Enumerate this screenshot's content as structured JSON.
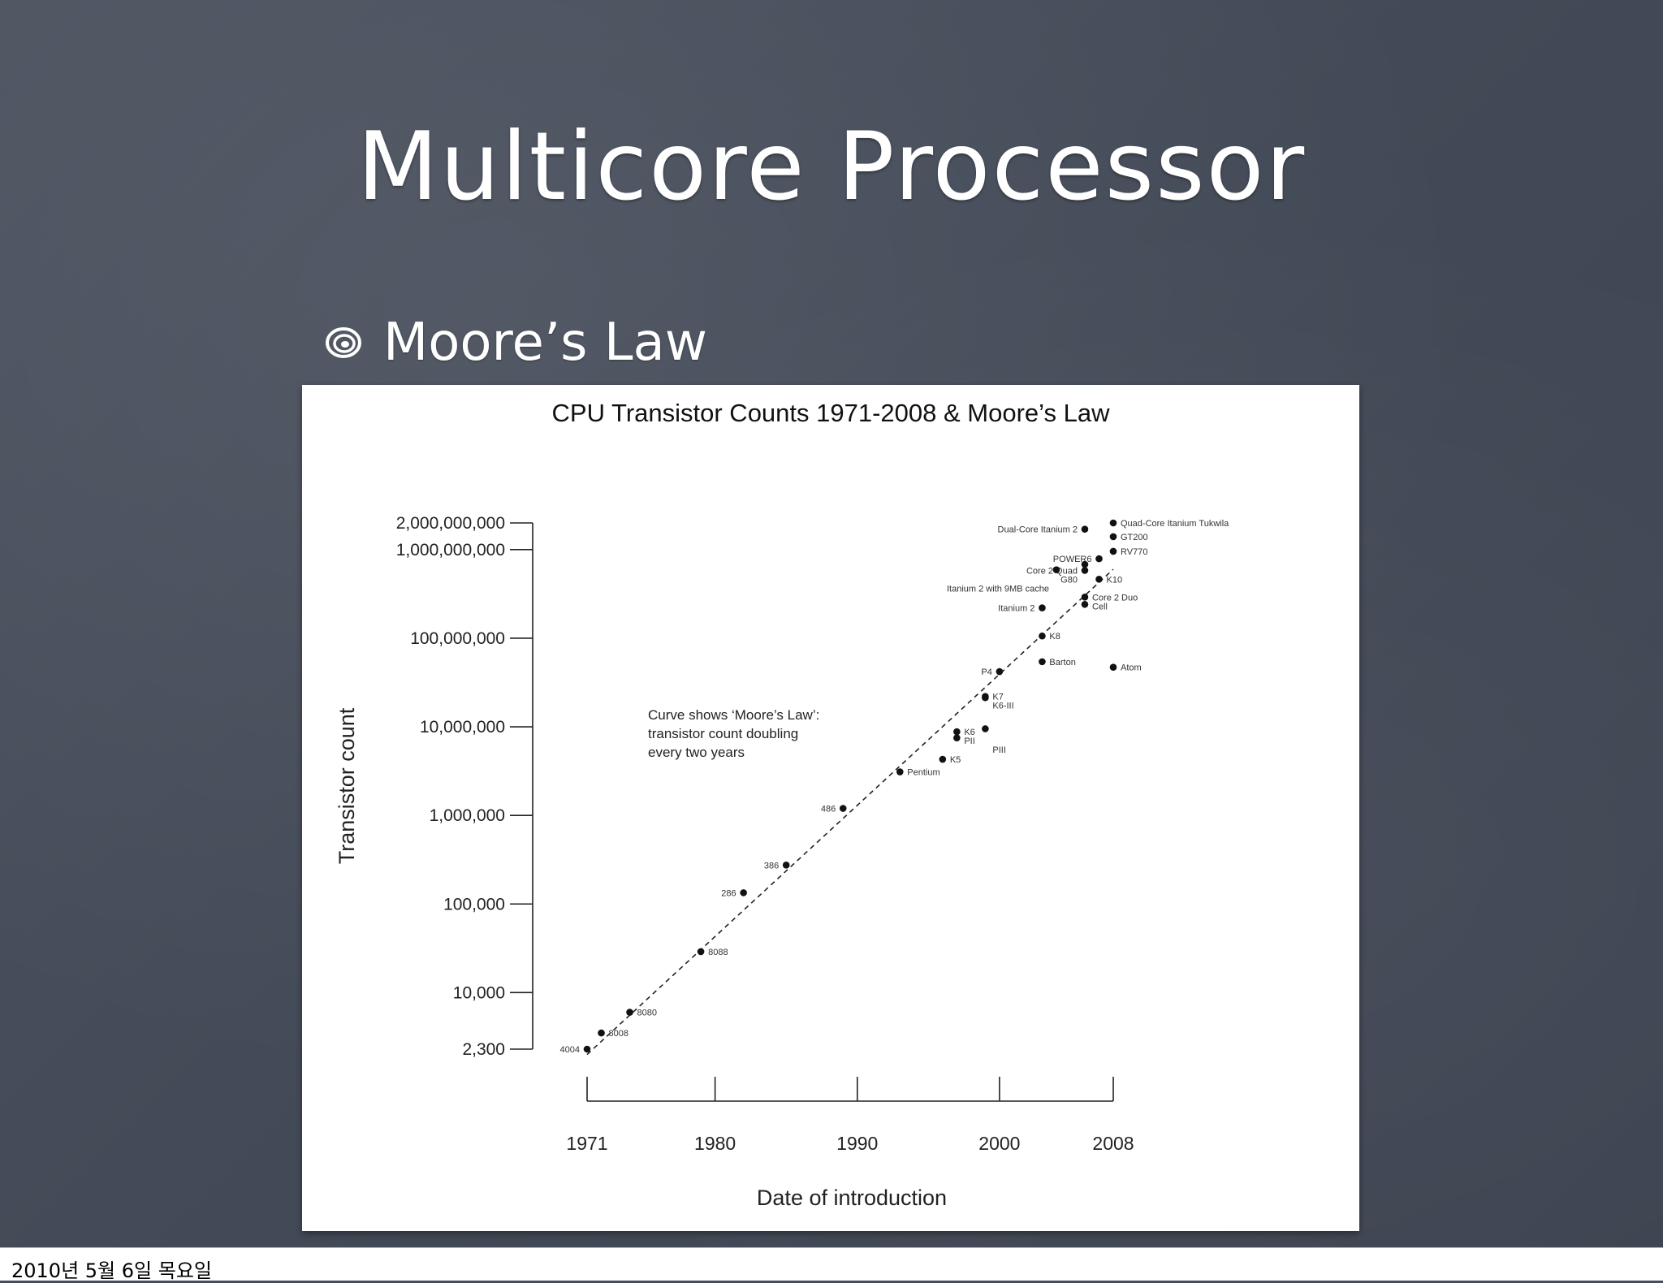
{
  "slide": {
    "title": "Multicore Processor",
    "bullet_icon": "swirl-bullet-icon",
    "bullet": "Moore’s Law",
    "footer_date": "2010년 5월 6일 목요일"
  },
  "colors": {
    "background": "#454c5a",
    "text": "#ffffff",
    "chart_ink": "#222222"
  },
  "chart_data": {
    "type": "scatter",
    "title": "CPU Transistor Counts 1971-2008 & Moore’s Law",
    "xlabel": "Date of introduction",
    "ylabel": "Transistor count",
    "x_scale": "linear",
    "y_scale": "log",
    "xlim": [
      1971,
      2008
    ],
    "ylim": [
      2300,
      2000000000
    ],
    "x_ticks": [
      {
        "value": 1971,
        "label": "1971"
      },
      {
        "value": 1980,
        "label": "1980"
      },
      {
        "value": 1990,
        "label": "1990"
      },
      {
        "value": 2000,
        "label": "2000"
      },
      {
        "value": 2008,
        "label": "2008"
      }
    ],
    "y_ticks": [
      {
        "value": 2000000000,
        "label": "2,000,000,000"
      },
      {
        "value": 1000000000,
        "label": "1,000,000,000"
      },
      {
        "value": 100000000,
        "label": "100,000,000"
      },
      {
        "value": 10000000,
        "label": "10,000,000"
      },
      {
        "value": 1000000,
        "label": "1,000,000"
      },
      {
        "value": 100000,
        "label": "100,000"
      },
      {
        "value": 10000,
        "label": "10,000"
      },
      {
        "value": 2300,
        "label": "2,300"
      }
    ],
    "grid": false,
    "legend": "none",
    "annotation": [
      "Curve shows ‘Moore’s Law’:",
      "transistor count doubling",
      "every two years"
    ],
    "trend_line": {
      "style": "dashed",
      "from": [
        1971,
        2000
      ],
      "to": [
        2008,
        600000000
      ]
    },
    "points": [
      {
        "label": "4004",
        "x": 1971,
        "y": 2300,
        "pos": "left"
      },
      {
        "label": "8008",
        "x": 1972,
        "y": 3500,
        "pos": "right"
      },
      {
        "label": "8080",
        "x": 1974,
        "y": 6000,
        "pos": "right"
      },
      {
        "label": "8088",
        "x": 1979,
        "y": 29000,
        "pos": "right"
      },
      {
        "label": "286",
        "x": 1982,
        "y": 134000,
        "pos": "left"
      },
      {
        "label": "386",
        "x": 1985,
        "y": 275000,
        "pos": "left"
      },
      {
        "label": "486",
        "x": 1989,
        "y": 1200000,
        "pos": "left"
      },
      {
        "label": "Pentium",
        "x": 1993,
        "y": 3100000,
        "pos": "right"
      },
      {
        "label": "K5",
        "x": 1996,
        "y": 4300000,
        "pos": "right"
      },
      {
        "label": "K6",
        "x": 1997,
        "y": 8800000,
        "pos": "right"
      },
      {
        "label": "PII",
        "x": 1997,
        "y": 7500000,
        "pos": "right"
      },
      {
        "label": "PIII",
        "x": 1999,
        "y": 9500000,
        "pos": "right"
      },
      {
        "label": "K7",
        "x": 1999,
        "y": 22000000,
        "pos": "right"
      },
      {
        "label": "K6-III",
        "x": 1999,
        "y": 21300000,
        "pos": "right"
      },
      {
        "label": "P4",
        "x": 2000,
        "y": 42000000,
        "pos": "left"
      },
      {
        "label": "Barton",
        "x": 2003,
        "y": 54300000,
        "pos": "right"
      },
      {
        "label": "K8",
        "x": 2003,
        "y": 105900000,
        "pos": "right"
      },
      {
        "label": "Itanium 2",
        "x": 2003,
        "y": 220000000,
        "pos": "left"
      },
      {
        "label": "Atom",
        "x": 2008,
        "y": 47000000,
        "pos": "right"
      },
      {
        "label": "Core 2 Duo",
        "x": 2006,
        "y": 291000000,
        "pos": "right"
      },
      {
        "label": "Cell",
        "x": 2006,
        "y": 241000000,
        "pos": "right"
      },
      {
        "label": "Core 2 Quad",
        "x": 2006,
        "y": 582000000,
        "pos": "left"
      },
      {
        "label": "G80",
        "x": 2006,
        "y": 681000000,
        "pos": "left"
      },
      {
        "label": "K10",
        "x": 2007,
        "y": 463000000,
        "pos": "right"
      },
      {
        "label": "Itanium 2 with 9MB cache",
        "x": 2004,
        "y": 592000000,
        "pos": "left"
      },
      {
        "label": "POWER6",
        "x": 2007,
        "y": 789000000,
        "pos": "left"
      },
      {
        "label": "Dual-Core Itanium 2",
        "x": 2006,
        "y": 1700000000,
        "pos": "left"
      },
      {
        "label": "RV770",
        "x": 2008,
        "y": 956000000,
        "pos": "right"
      },
      {
        "label": "GT200",
        "x": 2008,
        "y": 1400000000,
        "pos": "right"
      },
      {
        "label": "Quad-Core Itanium Tukwila",
        "x": 2008,
        "y": 2000000000,
        "pos": "right"
      }
    ]
  }
}
